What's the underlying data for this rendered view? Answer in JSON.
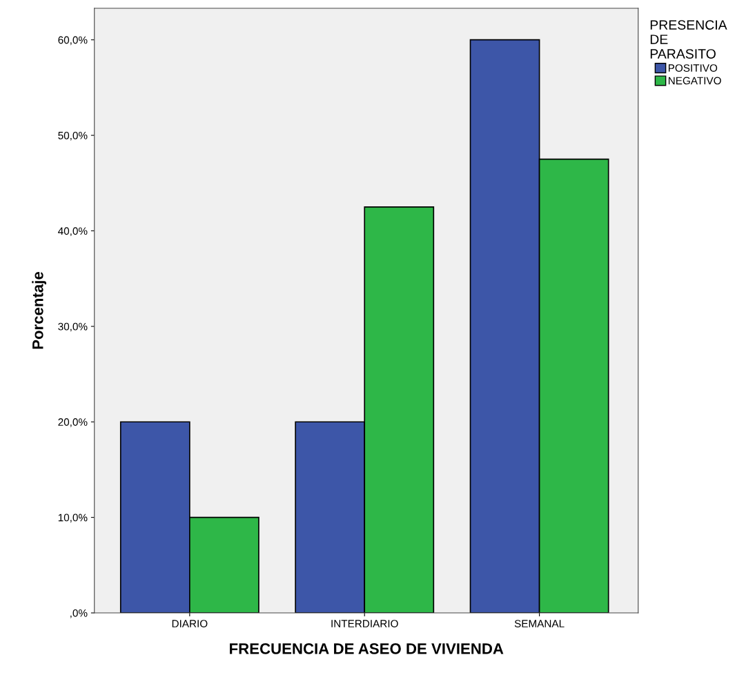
{
  "chart_data": {
    "type": "bar",
    "xlabel": "FRECUENCIA DE ASEO DE VIVIENDA",
    "ylabel": "Porcentaje",
    "legend_title": "PRESENCIA\nDE\nPARASITO",
    "legend": "top right",
    "categories": [
      "DIARIO",
      "INTERDIARIO",
      "SEMANAL"
    ],
    "series": [
      {
        "name": "POSITIVO",
        "color": "#3d56a8",
        "values": [
          20,
          20,
          60
        ]
      },
      {
        "name": "NEGATIVO",
        "color": "#2eb748",
        "values": [
          10,
          42.5,
          47.5
        ]
      }
    ],
    "ylim": [
      0,
      63.3
    ],
    "yticks": [
      {
        "value": 0,
        "label": ",0%"
      },
      {
        "value": 10,
        "label": "10,0%"
      },
      {
        "value": 20,
        "label": "20,0%"
      },
      {
        "value": 30,
        "label": "30,0%"
      },
      {
        "value": 40,
        "label": "40,0%"
      },
      {
        "value": 50,
        "label": "50,0%"
      },
      {
        "value": 60,
        "label": "60,0%"
      }
    ],
    "grid": false
  }
}
